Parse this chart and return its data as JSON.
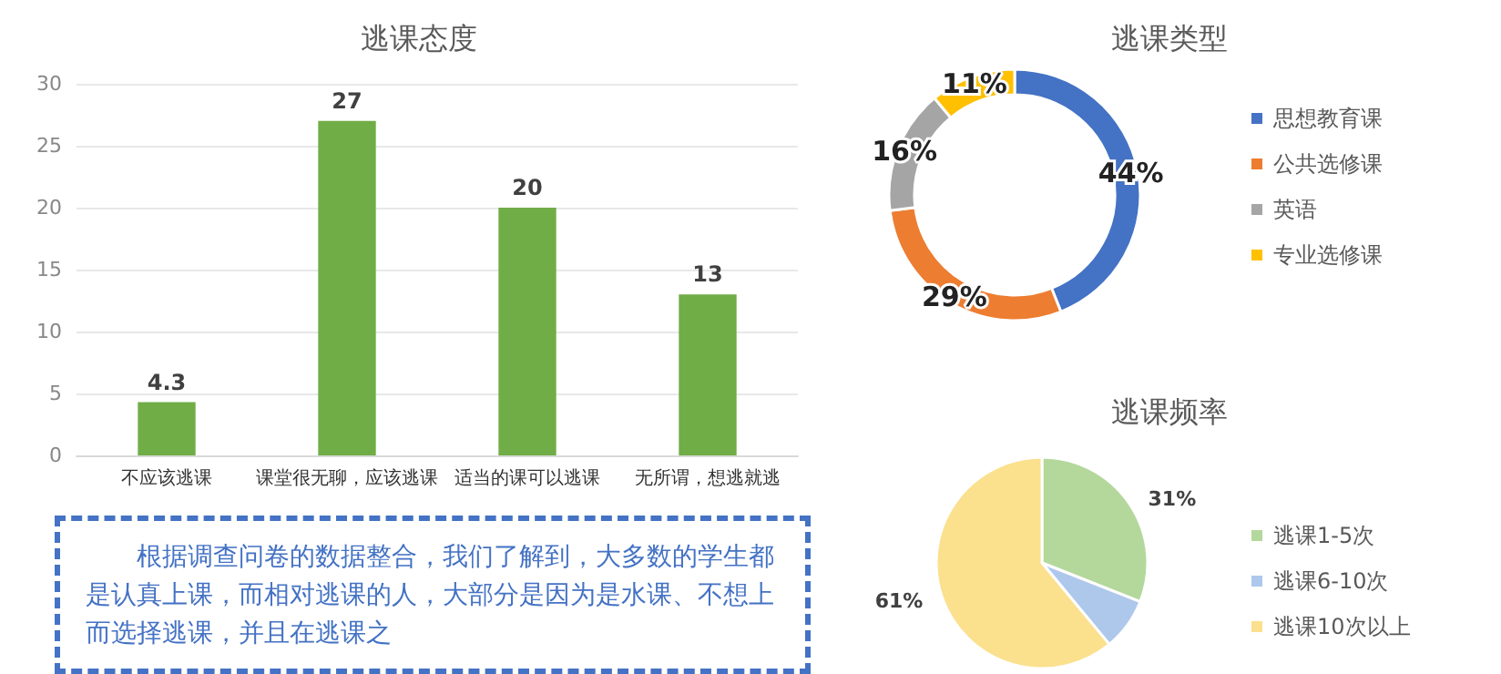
{
  "chart_data": [
    {
      "type": "bar",
      "title": "逃课态度",
      "categories": [
        "不应该逃课",
        "课堂很无聊，应该逃课",
        "适当的课可以逃课",
        "无所谓，想逃就逃"
      ],
      "values": [
        4.3,
        27,
        20,
        13
      ],
      "color": "#70ad47",
      "ylim": [
        0,
        30
      ],
      "yticks": [
        0,
        5,
        10,
        15,
        20,
        25,
        30
      ],
      "grid": "y",
      "data_labels": true
    },
    {
      "type": "donut",
      "title": "逃课类型",
      "categories": [
        "思想教育课",
        "公共选修课",
        "英语",
        "专业选修课"
      ],
      "values": [
        44,
        29,
        16,
        11
      ],
      "colors": [
        "#4472c4",
        "#ed7d31",
        "#a5a5a5",
        "#ffc000"
      ],
      "value_labels": [
        "44%",
        "29%",
        "16%",
        "11%"
      ],
      "legend": "right"
    },
    {
      "type": "pie",
      "title": "逃课频率",
      "categories": [
        "逃课1-5次",
        "逃课6-10次",
        "逃课10次以上"
      ],
      "values": [
        31,
        8,
        61
      ],
      "colors": [
        "#b4d89c",
        "#aec8ec",
        "#fbe08e"
      ],
      "value_labels": [
        "31%",
        null,
        "61%"
      ],
      "legend": "right"
    },
    {
      "type": "other",
      "annotations": [
        "根据调查问卷的数据整合，我们了解到，大多数的学生都是认真上课，而相对逃课的人，大部分是因为是水课、不想上而选择逃课，并且在逃课之"
      ]
    }
  ]
}
